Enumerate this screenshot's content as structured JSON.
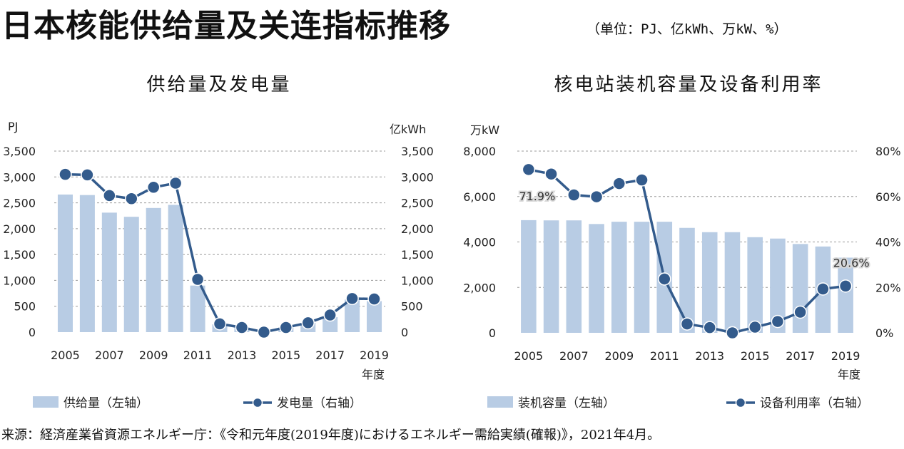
{
  "header": {
    "title": "日本核能供给量及关连指标推移",
    "units_note": "（单位：PJ、亿kWh、万kW、%）"
  },
  "footer": {
    "source": "来源：経済産業省資源エネルギー庁：《令和元年度(2019年度)におけるエネルギー需給実績(確報)》，2021年4月。"
  },
  "colors": {
    "bar": "#b8cce4",
    "line": "#335b8c",
    "grid": "#9a9a9a",
    "label_shadow": "#d9d9d9"
  },
  "chart_data": [
    {
      "type": "bar+line",
      "title": "供给量及发电量",
      "left_unit": "PJ",
      "right_unit": "亿kWh",
      "x": [
        "2005",
        "2006",
        "2007",
        "2008",
        "2009",
        "2010",
        "2011",
        "2012",
        "2013",
        "2014",
        "2015",
        "2016",
        "2017",
        "2018",
        "2019"
      ],
      "x_tick_labels": [
        "2005",
        "2007",
        "2009",
        "2011",
        "2013",
        "2015",
        "2017",
        "2019"
      ],
      "x_axis_suffix": "年度",
      "left_ticks": [
        "0",
        "500",
        "1,000",
        "1,500",
        "2,000",
        "2,500",
        "3,000",
        "3,500"
      ],
      "right_ticks": [
        "0",
        "500",
        "1,000",
        "1,500",
        "2,000",
        "2,500",
        "3,000",
        "3,500"
      ],
      "ylim_left": [
        0,
        3500
      ],
      "ylim_right": [
        0,
        3500
      ],
      "grid": true,
      "legend_position": "bottom",
      "series": [
        {
          "name": "供给量（左轴）",
          "kind": "bar",
          "axis": "left",
          "values": [
            2660,
            2650,
            2310,
            2230,
            2400,
            2460,
            900,
            150,
            90,
            0,
            90,
            180,
            290,
            630,
            600
          ]
        },
        {
          "name": "发电量（右轴）",
          "kind": "line",
          "axis": "right",
          "values": [
            3050,
            3040,
            2640,
            2580,
            2800,
            2880,
            1020,
            160,
            90,
            0,
            90,
            180,
            330,
            650,
            640
          ]
        }
      ],
      "annotations": []
    },
    {
      "type": "bar+line",
      "title": "核电站装机容量及设备利用率",
      "left_unit": "万kW",
      "right_unit": "",
      "x": [
        "2005",
        "2006",
        "2007",
        "2008",
        "2009",
        "2010",
        "2011",
        "2012",
        "2013",
        "2014",
        "2015",
        "2016",
        "2017",
        "2018",
        "2019"
      ],
      "x_tick_labels": [
        "2005",
        "2007",
        "2009",
        "2011",
        "2013",
        "2015",
        "2017",
        "2019"
      ],
      "x_axis_suffix": "年度",
      "left_ticks": [
        "0",
        "2,000",
        "4,000",
        "6,000",
        "8,000"
      ],
      "right_ticks": [
        "0%",
        "20%",
        "40%",
        "60%",
        "80%"
      ],
      "ylim_left": [
        0,
        8000
      ],
      "ylim_right": [
        0,
        80
      ],
      "grid": true,
      "legend_position": "bottom",
      "series": [
        {
          "name": "装机容量（左轴）",
          "kind": "bar",
          "axis": "left",
          "values": [
            4960,
            4950,
            4950,
            4790,
            4890,
            4890,
            4890,
            4620,
            4430,
            4430,
            4210,
            4150,
            3910,
            3800,
            3310
          ]
        },
        {
          "name": "设备利用率（右轴）",
          "kind": "line",
          "axis": "right",
          "values": [
            71.9,
            69.9,
            60.7,
            59.9,
            65.7,
            67.3,
            23.7,
            3.9,
            2.3,
            0,
            2.5,
            5.0,
            9.1,
            19.3,
            20.6
          ]
        }
      ],
      "annotations": [
        {
          "text": "71.9%",
          "series": 1,
          "index": 0
        },
        {
          "text": "20.6%",
          "series": 1,
          "index": 14
        }
      ]
    }
  ]
}
